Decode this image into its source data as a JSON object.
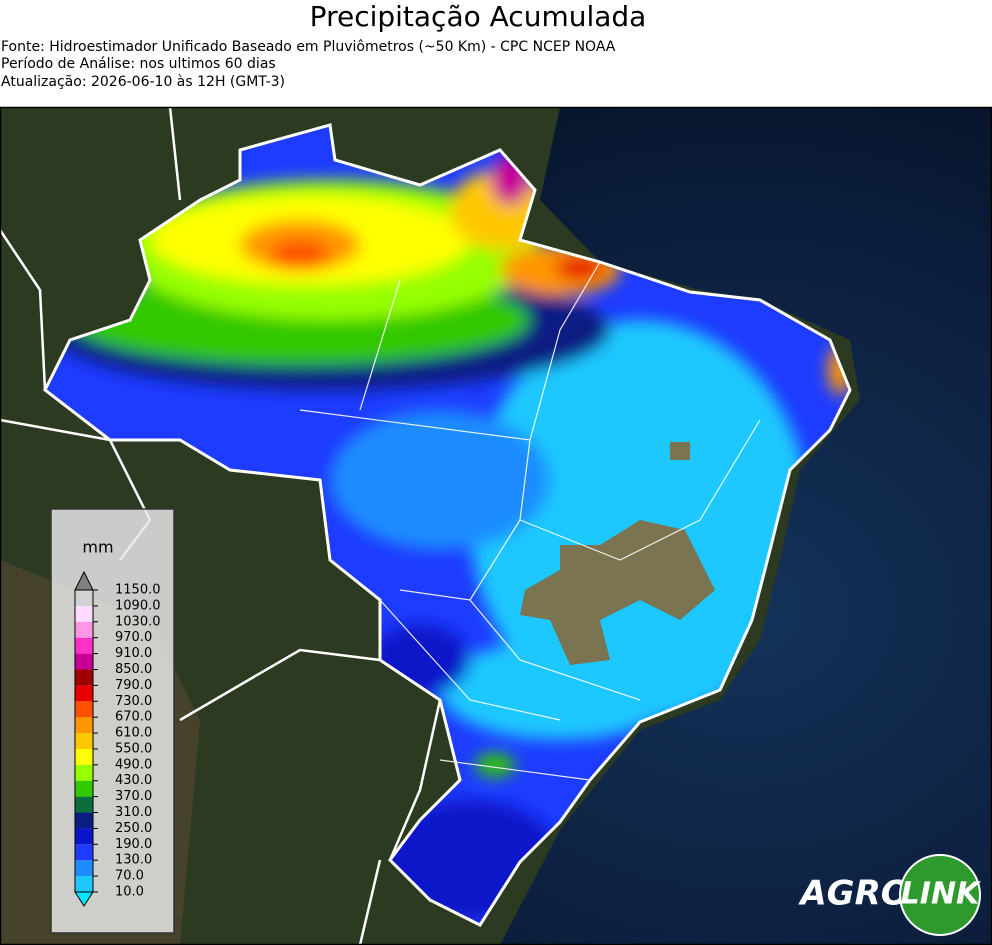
{
  "header": {
    "title": "Precipitação Acumulada",
    "lines": [
      "Fonte: Hidroestimador Unificado Baseado em Pluviômetros (~50 Km) - CPC NCEP NOAA",
      "Período de Análise: nos ultimos 60 dias",
      "Atualização: 2026-06-10 às 12H (GMT-3)"
    ]
  },
  "legend": {
    "unit": "mm",
    "ticks": [
      {
        "value": 10,
        "label": "10.0"
      },
      {
        "value": 70,
        "label": "70.0"
      },
      {
        "value": 130,
        "label": "130.0"
      },
      {
        "value": 190,
        "label": "190.0"
      },
      {
        "value": 250,
        "label": "250.0"
      },
      {
        "value": 310,
        "label": "310.0"
      },
      {
        "value": 370,
        "label": "370.0"
      },
      {
        "value": 430,
        "label": "430.0"
      },
      {
        "value": 490,
        "label": "490.0"
      },
      {
        "value": 550,
        "label": "550.0"
      },
      {
        "value": 610,
        "label": "610.0"
      },
      {
        "value": 670,
        "label": "670.0"
      },
      {
        "value": 730,
        "label": "730.0"
      },
      {
        "value": 790,
        "label": "790.0"
      },
      {
        "value": 850,
        "label": "850.0"
      },
      {
        "value": 910,
        "label": "910.0"
      },
      {
        "value": 970,
        "label": "970.0"
      },
      {
        "value": 1030,
        "label": "1030.0"
      },
      {
        "value": 1090,
        "label": "1090.0"
      },
      {
        "value": 1150,
        "label": "1150.0"
      }
    ],
    "colors": [
      "#1ec8ff",
      "#1e8cff",
      "#1e3cff",
      "#0a14c8",
      "#0a1e82",
      "#0a6e3c",
      "#32c800",
      "#96ff00",
      "#ffff00",
      "#ffc800",
      "#ff9600",
      "#ff5000",
      "#e60000",
      "#a00000",
      "#c80096",
      "#ff32c8",
      "#ff96e6",
      "#ffdcff",
      "#d2d2d2"
    ],
    "under_color": "#00e6ff",
    "over_color": "#808080"
  },
  "logo": {
    "left": "AGRO",
    "right": "LINK"
  }
}
